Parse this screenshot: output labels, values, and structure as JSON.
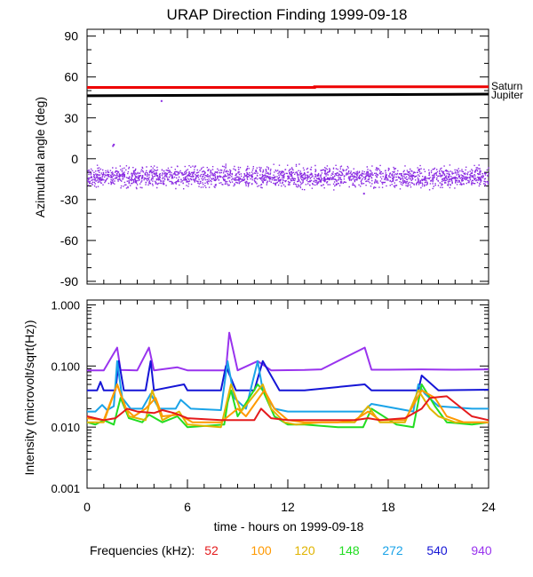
{
  "title": "URAP Direction Finding  1999-09-18",
  "xlabel": "time - hours on 1999-09-18",
  "x_ticks": [
    "0",
    "6",
    "12",
    "18",
    "24"
  ],
  "xlim": [
    0,
    24
  ],
  "legend_label": "Frequencies (kHz):",
  "legend": [
    {
      "label": "52",
      "color": "#e41a1c"
    },
    {
      "label": "100",
      "color": "#ff9900"
    },
    {
      "label": "120",
      "color": "#e0b400"
    },
    {
      "label": "148",
      "color": "#22dd22"
    },
    {
      "label": "272",
      "color": "#1aa3e8"
    },
    {
      "label": "540",
      "color": "#1515d6"
    },
    {
      "label": "940",
      "color": "#9933ee"
    }
  ],
  "chart_data": [
    {
      "type": "scatter",
      "ylabel": "Azimuthal angle (deg)",
      "ylim": [
        -92,
        95
      ],
      "y_ticks": [
        "90",
        "60",
        "30",
        "0",
        "-30",
        "-60",
        "-90"
      ],
      "y_tick_values": [
        90,
        60,
        30,
        0,
        -30,
        -60,
        -90
      ],
      "series": [
        {
          "name": "Saturn",
          "color": "#ee0000",
          "x": [
            0,
            13.6,
            13.6,
            24
          ],
          "y": [
            52.3,
            52.3,
            52.8,
            52.8
          ]
        },
        {
          "name": "Jupiter",
          "color": "#000000",
          "x": [
            0,
            24
          ],
          "y": [
            46.2,
            47.4
          ]
        },
        {
          "name": "940 kHz direction",
          "color": "#8a2be2",
          "x_range": [
            0,
            24
          ],
          "y_center": -13,
          "y_spread": 9
        }
      ],
      "labels": [
        "Saturn",
        "Jupiter"
      ]
    },
    {
      "type": "line",
      "ylabel": "Intensity (microvolt/sqrt(Hz))",
      "yscale": "log",
      "ylim": [
        0.001,
        1.2
      ],
      "y_ticks": [
        "1.000",
        "0.100",
        "0.010",
        "0.001"
      ],
      "y_tick_values": [
        1,
        0.1,
        0.01,
        0.001
      ],
      "series": [
        {
          "name": "940",
          "color": "#9933ee",
          "x": [
            0,
            1,
            1.8,
            2,
            3,
            3.7,
            4,
            5.4,
            6,
            8.3,
            8.5,
            9,
            10.2,
            11,
            13,
            14,
            16.6,
            17,
            18,
            20,
            22,
            24
          ],
          "y": [
            0.085,
            0.085,
            0.2,
            0.086,
            0.085,
            0.2,
            0.085,
            0.095,
            0.085,
            0.085,
            0.35,
            0.085,
            0.12,
            0.085,
            0.086,
            0.088,
            0.2,
            0.087,
            0.087,
            0.088,
            0.087,
            0.088
          ]
        },
        {
          "name": "540",
          "color": "#1515d6",
          "x": [
            0,
            0.6,
            0.8,
            1,
            1.7,
            1.9,
            2.2,
            3.5,
            3.8,
            4,
            5.8,
            6,
            8,
            8.3,
            8.9,
            10,
            10.5,
            11.5,
            13,
            16.6,
            17,
            19.8,
            20,
            21,
            24
          ],
          "y": [
            0.04,
            0.04,
            0.055,
            0.04,
            0.04,
            0.12,
            0.04,
            0.04,
            0.12,
            0.04,
            0.05,
            0.04,
            0.04,
            0.1,
            0.04,
            0.04,
            0.12,
            0.04,
            0.04,
            0.05,
            0.04,
            0.04,
            0.07,
            0.04,
            0.041
          ]
        },
        {
          "name": "272",
          "color": "#1aa3e8",
          "x": [
            0,
            0.5,
            0.9,
            1.2,
            1.6,
            1.8,
            2.1,
            2.6,
            3.3,
            3.8,
            4.3,
            5.3,
            5.6,
            6.2,
            8,
            8.4,
            8.8,
            9.5,
            10.2,
            10.5,
            11.2,
            12,
            16.5,
            17,
            19.5,
            19.8,
            20.2,
            21,
            23,
            24
          ],
          "y": [
            0.018,
            0.018,
            0.023,
            0.019,
            0.022,
            0.12,
            0.03,
            0.02,
            0.02,
            0.035,
            0.02,
            0.02,
            0.028,
            0.02,
            0.019,
            0.12,
            0.03,
            0.02,
            0.12,
            0.04,
            0.02,
            0.018,
            0.018,
            0.024,
            0.018,
            0.05,
            0.035,
            0.022,
            0.02,
            0.02
          ]
        },
        {
          "name": "148",
          "color": "#22dd22",
          "x": [
            0,
            0.5,
            1,
            1.6,
            2,
            2.5,
            3.3,
            3.7,
            4.5,
            5.4,
            6,
            8.2,
            8.4,
            8.6,
            9,
            10.2,
            10.5,
            11.2,
            12,
            13,
            15,
            16.5,
            17,
            18.5,
            19.5,
            20,
            20.8,
            21.5,
            23,
            24
          ],
          "y": [
            0.012,
            0.011,
            0.013,
            0.011,
            0.03,
            0.014,
            0.012,
            0.016,
            0.012,
            0.015,
            0.01,
            0.011,
            0.025,
            0.04,
            0.015,
            0.05,
            0.04,
            0.015,
            0.011,
            0.011,
            0.01,
            0.01,
            0.02,
            0.011,
            0.01,
            0.05,
            0.022,
            0.012,
            0.011,
            0.012
          ]
        },
        {
          "name": "120",
          "color": "#e0b400",
          "x": [
            0,
            1,
            1.8,
            2.1,
            2.5,
            3.5,
            3.9,
            4.5,
            5.5,
            6,
            8,
            8.6,
            9.2,
            10.5,
            11,
            11.8,
            12.5,
            14,
            16,
            16.8,
            17.5,
            19,
            19.8,
            20.5,
            21,
            22,
            24
          ],
          "y": [
            0.012,
            0.012,
            0.05,
            0.03,
            0.015,
            0.013,
            0.04,
            0.013,
            0.018,
            0.011,
            0.01,
            0.05,
            0.018,
            0.05,
            0.02,
            0.012,
            0.011,
            0.012,
            0.012,
            0.022,
            0.012,
            0.012,
            0.04,
            0.02,
            0.015,
            0.012,
            0.012
          ]
        },
        {
          "name": "100",
          "color": "#ff9900",
          "x": [
            0,
            1,
            1.8,
            2.3,
            2.8,
            3.5,
            4.1,
            4.5,
            5.5,
            6.3,
            8,
            9,
            9.5,
            10.6,
            11.2,
            12,
            13,
            15,
            16,
            16.8,
            17.5,
            19,
            20,
            20.8,
            21.5,
            22.5,
            24
          ],
          "y": [
            0.014,
            0.013,
            0.05,
            0.02,
            0.015,
            0.02,
            0.03,
            0.015,
            0.016,
            0.012,
            0.012,
            0.02,
            0.015,
            0.04,
            0.02,
            0.013,
            0.012,
            0.012,
            0.013,
            0.018,
            0.013,
            0.013,
            0.04,
            0.03,
            0.015,
            0.012,
            0.012
          ]
        },
        {
          "name": "52",
          "color": "#e41a1c",
          "x": [
            0,
            1,
            1.7,
            2.4,
            3,
            4,
            4.5,
            5.2,
            6,
            8,
            9,
            10,
            10.4,
            11,
            12,
            14,
            16,
            16.8,
            17.5,
            19,
            20,
            20.5,
            21.5,
            23,
            24
          ],
          "y": [
            0.015,
            0.013,
            0.014,
            0.02,
            0.018,
            0.017,
            0.019,
            0.017,
            0.014,
            0.013,
            0.013,
            0.013,
            0.02,
            0.014,
            0.013,
            0.013,
            0.013,
            0.014,
            0.013,
            0.014,
            0.02,
            0.03,
            0.032,
            0.015,
            0.013
          ]
        }
      ]
    }
  ]
}
